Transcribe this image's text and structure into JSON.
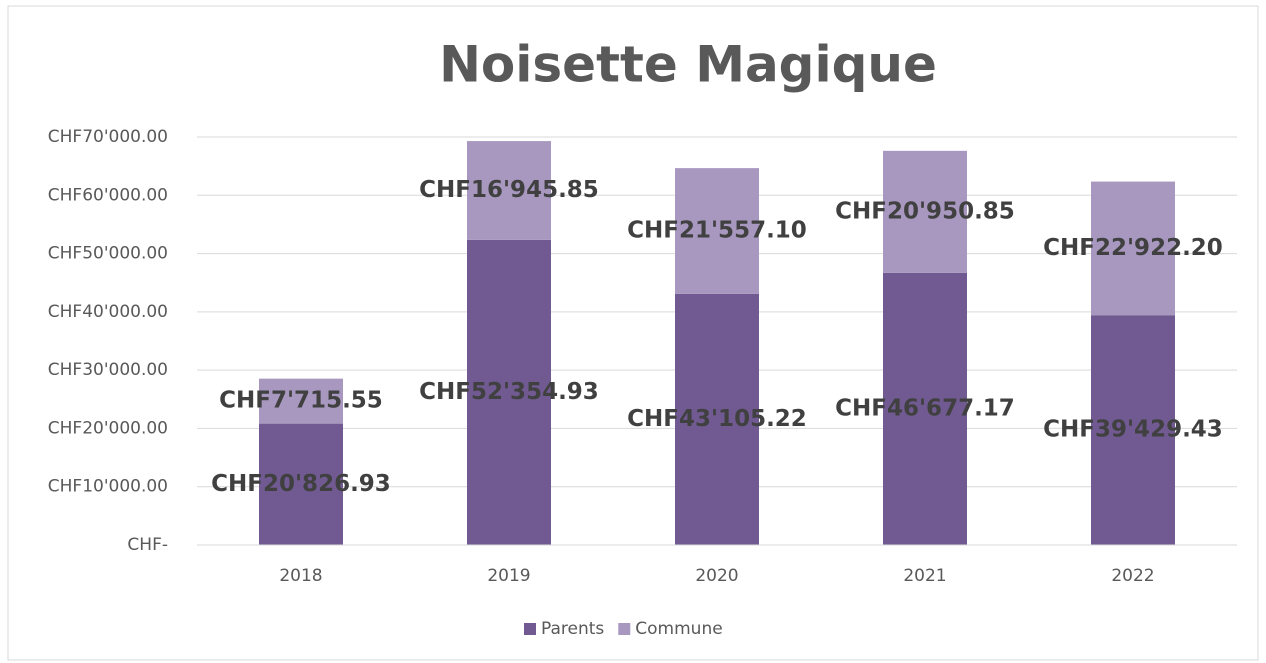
{
  "chart_data": {
    "type": "stacked_bar",
    "title": "Noisette Magique",
    "categories": [
      "2018",
      "2019",
      "2020",
      "2021",
      "2022"
    ],
    "series": [
      {
        "name": "Parents",
        "color": "#705a91",
        "values": [
          20826.93,
          52354.93,
          43105.22,
          46677.17,
          39429.43
        ],
        "value_labels": [
          "CHF20'826.93",
          "CHF52'354.93",
          "CHF43'105.22",
          "CHF46'677.17",
          "CHF39'429.43"
        ]
      },
      {
        "name": "Commune",
        "color": "#a898c0",
        "values": [
          7715.55,
          16945.85,
          21557.1,
          20950.85,
          22922.2
        ],
        "value_labels": [
          "CHF7'715.55",
          "CHF16'945.85",
          "CHF21'557.10",
          "CHF20'950.85",
          "CHF22'922.20"
        ]
      }
    ],
    "ylim": [
      0,
      70000
    ],
    "yticks": [
      {
        "value": 0,
        "label": "CHF-"
      },
      {
        "value": 10000,
        "label": "CHF10'000.00"
      },
      {
        "value": 20000,
        "label": "CHF20'000.00"
      },
      {
        "value": 30000,
        "label": "CHF30'000.00"
      },
      {
        "value": 40000,
        "label": "CHF40'000.00"
      },
      {
        "value": 50000,
        "label": "CHF50'000.00"
      },
      {
        "value": 60000,
        "label": "CHF60'000.00"
      },
      {
        "value": 70000,
        "label": "CHF70'000.00"
      }
    ],
    "grid": true,
    "legend": "bottom"
  }
}
